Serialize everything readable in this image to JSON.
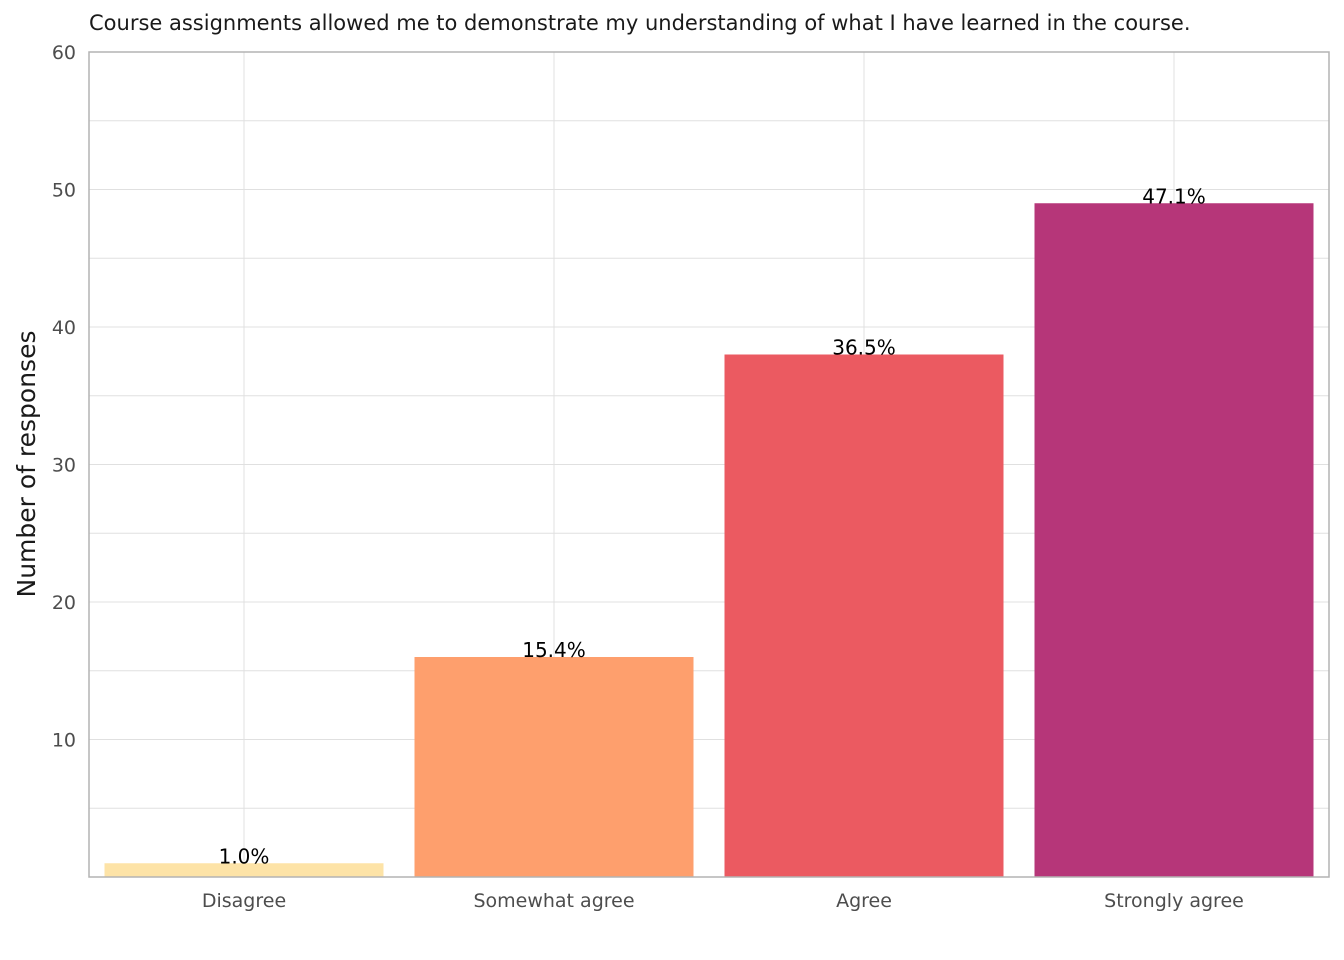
{
  "chart_data": {
    "type": "bar",
    "title": "Course assignments allowed me to demonstrate my understanding of what I have learned in the course.",
    "xlabel": "",
    "ylabel": "Number of responses",
    "categories": [
      "Disagree",
      "Somewhat agree",
      "Agree",
      "Strongly agree"
    ],
    "values": [
      1,
      16,
      38,
      49
    ],
    "data_labels": [
      "1.0%",
      "15.4%",
      "36.5%",
      "47.1%"
    ],
    "colors": [
      "#FDE3A7",
      "#FE9F6D",
      "#EB5A61",
      "#B63679"
    ],
    "ylim": [
      0,
      60
    ],
    "yticks": [
      10,
      20,
      30,
      40,
      50,
      60
    ],
    "grid": true,
    "legend": "none",
    "gridColor": "#e0e0e0",
    "axisColor": "#b3b3b3"
  }
}
